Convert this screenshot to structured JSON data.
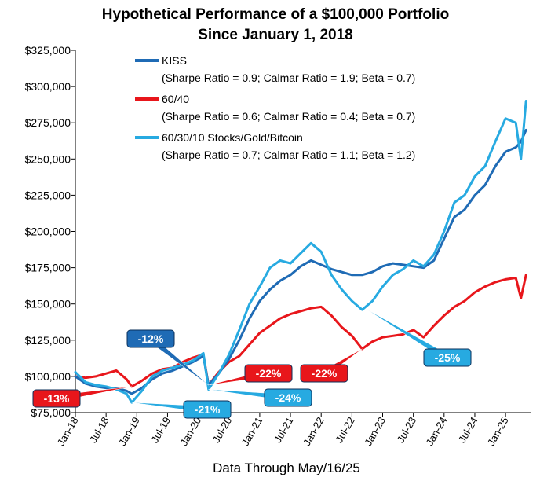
{
  "chart_data": {
    "type": "line",
    "title": "Hypothetical Performance of a $100,000 Portfolio",
    "subtitle": "Since January 1, 2018",
    "xlabel": "Data Through May/16/25",
    "ylabel": "",
    "ylim": [
      75000,
      325000
    ],
    "yticks": [
      {
        "value": 75000,
        "label": "$75,000"
      },
      {
        "value": 100000,
        "label": "$100,000"
      },
      {
        "value": 125000,
        "label": "$125,000"
      },
      {
        "value": 150000,
        "label": "$150,000"
      },
      {
        "value": 175000,
        "label": "$175,000"
      },
      {
        "value": 200000,
        "label": "$200,000"
      },
      {
        "value": 225000,
        "label": "$225,000"
      },
      {
        "value": 250000,
        "label": "$250,000"
      },
      {
        "value": 275000,
        "label": "$275,000"
      },
      {
        "value": 300000,
        "label": "$300,000"
      },
      {
        "value": 325000,
        "label": "$325,000"
      }
    ],
    "xticks": [
      {
        "date": "2018-01",
        "label": "Jan-18"
      },
      {
        "date": "2018-07",
        "label": "Jul-18"
      },
      {
        "date": "2019-01",
        "label": "Jan-19"
      },
      {
        "date": "2019-07",
        "label": "Jul-19"
      },
      {
        "date": "2020-01",
        "label": "Jan-20"
      },
      {
        "date": "2020-07",
        "label": "Jul-20"
      },
      {
        "date": "2021-01",
        "label": "Jan-21"
      },
      {
        "date": "2021-07",
        "label": "Jul-21"
      },
      {
        "date": "2022-01",
        "label": "Jan-22"
      },
      {
        "date": "2022-07",
        "label": "Jul-22"
      },
      {
        "date": "2023-01",
        "label": "Jan-23"
      },
      {
        "date": "2023-07",
        "label": "Jul-23"
      },
      {
        "date": "2024-01",
        "label": "Jan-24"
      },
      {
        "date": "2024-07",
        "label": "Jul-24"
      },
      {
        "date": "2025-01",
        "label": "Jan-25"
      }
    ],
    "x": [
      "2018-01",
      "2018-03",
      "2018-05",
      "2018-07",
      "2018-09",
      "2018-11",
      "2018-12",
      "2019-02",
      "2019-04",
      "2019-06",
      "2019-08",
      "2019-10",
      "2019-12",
      "2020-02",
      "2020-03",
      "2020-05",
      "2020-07",
      "2020-09",
      "2020-11",
      "2021-01",
      "2021-03",
      "2021-05",
      "2021-07",
      "2021-09",
      "2021-11",
      "2022-01",
      "2022-03",
      "2022-05",
      "2022-07",
      "2022-09",
      "2022-11",
      "2023-01",
      "2023-03",
      "2023-05",
      "2023-07",
      "2023-09",
      "2023-11",
      "2024-01",
      "2024-03",
      "2024-05",
      "2024-07",
      "2024-09",
      "2024-11",
      "2025-01",
      "2025-03",
      "2025-04",
      "2025-05"
    ],
    "series": [
      {
        "name": "KISS",
        "stats": "(Sharpe Ratio = 0.9; Calmar Ratio = 1.9; Beta = 0.7)",
        "color": "#1f6bb5",
        "values": [
          100000,
          95000,
          93000,
          92000,
          92000,
          90000,
          88000,
          92000,
          98000,
          102000,
          104000,
          107000,
          110000,
          114000,
          94000,
          102000,
          112000,
          125000,
          140000,
          152000,
          160000,
          166000,
          170000,
          176000,
          180000,
          177000,
          174000,
          172000,
          170000,
          170000,
          172000,
          176000,
          178000,
          177000,
          176000,
          175000,
          180000,
          195000,
          210000,
          215000,
          225000,
          232000,
          245000,
          255000,
          258000,
          262000,
          270000
        ]
      },
      {
        "name": "60/40",
        "stats": "(Sharpe Ratio = 0.6; Calmar Ratio = 0.4; Beta = 0.7)",
        "color": "#e8161b",
        "values": [
          100000,
          99000,
          100000,
          102000,
          104000,
          98000,
          93000,
          97000,
          102000,
          105000,
          106000,
          110000,
          113000,
          115000,
          94000,
          103000,
          110000,
          114000,
          122000,
          130000,
          135000,
          140000,
          143000,
          145000,
          147000,
          148000,
          142000,
          134000,
          128000,
          119000,
          124000,
          127000,
          128000,
          129000,
          132000,
          127000,
          135000,
          142000,
          148000,
          152000,
          158000,
          162000,
          165000,
          167000,
          168000,
          154000,
          170000
        ]
      },
      {
        "name": "60/30/10 Stocks/Gold/Bitcoin",
        "stats": "(Sharpe Ratio = 0.7; Calmar Ratio = 1.1; Beta = 1.2)",
        "color": "#27aae1",
        "values": [
          103000,
          96000,
          94000,
          93000,
          91000,
          88000,
          82000,
          90000,
          100000,
          104000,
          106000,
          108000,
          111000,
          116000,
          91000,
          102000,
          115000,
          132000,
          150000,
          162000,
          175000,
          180000,
          178000,
          185000,
          192000,
          186000,
          170000,
          160000,
          152000,
          146000,
          152000,
          162000,
          170000,
          174000,
          180000,
          176000,
          184000,
          200000,
          220000,
          225000,
          238000,
          245000,
          262000,
          278000,
          275000,
          250000,
          290000
        ]
      }
    ],
    "annotations": [
      {
        "label": "-13%",
        "color": "#e8161b",
        "target_date": "2018-12",
        "target_value": 93000
      },
      {
        "label": "-21%",
        "color": "#27aae1",
        "target_date": "2018-12",
        "target_value": 82000
      },
      {
        "label": "-12%",
        "color": "#1f6bb5",
        "target_date": "2020-03",
        "target_value": 94000
      },
      {
        "label": "-22%",
        "color": "#e8161b",
        "target_date": "2020-03",
        "target_value": 94000
      },
      {
        "label": "-24%",
        "color": "#27aae1",
        "target_date": "2020-03",
        "target_value": 91000
      },
      {
        "label": "-22%",
        "color": "#e8161b",
        "target_date": "2022-09",
        "target_value": 119000
      },
      {
        "label": "-25%",
        "color": "#27aae1",
        "target_date": "2022-10",
        "target_value": 146000
      }
    ],
    "grid": false,
    "legend_placement": "top-left"
  }
}
